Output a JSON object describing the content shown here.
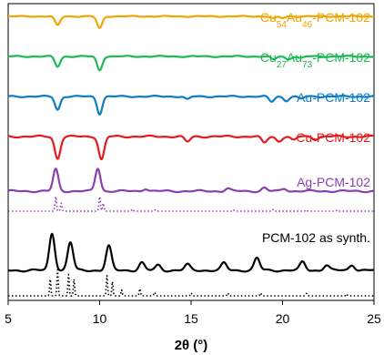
{
  "chart_data": {
    "type": "line",
    "xlabel": "2θ (°)",
    "x_ticks": [
      5,
      10,
      15,
      20,
      25
    ],
    "xlim": [
      5,
      25
    ],
    "y_axis": "stacked traces, no y scale",
    "grid": false,
    "legend": "labels placed beside each trace, right side",
    "series": [
      {
        "name": "Cu54Au46-PCM-102",
        "label_parts": [
          [
            "Cu",
            ""
          ],
          [
            "54",
            "sub"
          ],
          [
            "Au",
            ""
          ],
          [
            "46",
            "sub"
          ],
          [
            "-PCM-102",
            ""
          ]
        ],
        "color": "#F0A500",
        "style": "solid",
        "peaks": [
          [
            7.7,
            0.75
          ],
          [
            10.0,
            1.0
          ],
          [
            19.5,
            0.18
          ],
          [
            20.0,
            0.15
          ]
        ]
      },
      {
        "name": "Cu27Au73-PCM-102",
        "label_parts": [
          [
            "Cu",
            ""
          ],
          [
            "27",
            "sub"
          ],
          [
            "Au",
            ""
          ],
          [
            "73",
            "sub"
          ],
          [
            "-PCM-102",
            ""
          ]
        ],
        "color": "#1DB954",
        "style": "solid",
        "peaks": [
          [
            7.7,
            0.7
          ],
          [
            10.0,
            0.95
          ],
          [
            19.5,
            0.22
          ],
          [
            20.3,
            0.2
          ],
          [
            21.0,
            0.12
          ]
        ]
      },
      {
        "name": "Au-PCM-102",
        "label_parts": [
          [
            "Au-PCM-102",
            ""
          ]
        ],
        "color": "#0A7DC6",
        "style": "solid",
        "peaks": [
          [
            7.7,
            0.8
          ],
          [
            10.0,
            1.05
          ],
          [
            14.8,
            0.18
          ],
          [
            19.4,
            0.32
          ],
          [
            20.2,
            0.25
          ],
          [
            21.0,
            0.15
          ]
        ]
      },
      {
        "name": "Cu-PCM-102",
        "label_parts": [
          [
            "Cu-PCM-102",
            ""
          ]
        ],
        "color": "#E41A1C",
        "style": "solid",
        "peaks": [
          [
            7.7,
            1.05
          ],
          [
            10.1,
            1.1
          ],
          [
            14.8,
            0.25
          ],
          [
            19.0,
            0.3
          ],
          [
            19.8,
            0.22
          ],
          [
            20.6,
            0.18
          ],
          [
            21.8,
            0.12
          ]
        ]
      },
      {
        "name": "Ag-PCM-102",
        "label_parts": [
          [
            "Ag-PCM-102",
            ""
          ]
        ],
        "color": "#8B3FAF",
        "style": "solid",
        "peaks": [
          [
            7.6,
            1.0
          ],
          [
            9.9,
            1.05
          ],
          [
            12.5,
            0.12
          ],
          [
            17.0,
            0.12
          ],
          [
            19.0,
            0.15
          ],
          [
            20.1,
            0.12
          ]
        ]
      },
      {
        "name": "Ag-PCM-102 (simulated)",
        "label_parts": [],
        "color": "#8B3FAF",
        "style": "dotted",
        "peaks": [
          [
            7.6,
            1.0
          ],
          [
            7.9,
            0.55
          ],
          [
            10.0,
            1.0
          ],
          [
            10.2,
            0.55
          ],
          [
            11.8,
            0.15
          ],
          [
            13.0,
            0.1
          ],
          [
            17.3,
            0.1
          ],
          [
            19.5,
            0.12
          ],
          [
            21.3,
            0.1
          ],
          [
            23.0,
            0.08
          ]
        ]
      },
      {
        "name": "PCM-102 as synth.",
        "label_parts": [
          [
            "PCM-102 as synth.",
            ""
          ]
        ],
        "color": "#000000",
        "style": "solid",
        "peaks": [
          [
            7.4,
            1.45
          ],
          [
            8.4,
            1.1
          ],
          [
            10.5,
            0.95
          ],
          [
            12.3,
            0.3
          ],
          [
            13.2,
            0.2
          ],
          [
            14.8,
            0.22
          ],
          [
            16.8,
            0.28
          ],
          [
            18.6,
            0.48
          ],
          [
            21.1,
            0.32
          ],
          [
            22.4,
            0.2
          ],
          [
            23.8,
            0.22
          ]
        ]
      },
      {
        "name": "PCM-102 (simulated)",
        "label_parts": [],
        "color": "#000000",
        "style": "dotted",
        "peaks": [
          [
            7.3,
            0.7
          ],
          [
            7.7,
            1.1
          ],
          [
            8.3,
            0.9
          ],
          [
            8.6,
            0.7
          ],
          [
            10.4,
            0.85
          ],
          [
            10.7,
            0.6
          ],
          [
            11.2,
            0.25
          ],
          [
            12.2,
            0.3
          ],
          [
            13.0,
            0.15
          ],
          [
            15.0,
            0.12
          ],
          [
            17.0,
            0.12
          ],
          [
            18.8,
            0.12
          ],
          [
            21.3,
            0.1
          ],
          [
            23.5,
            0.08
          ]
        ]
      }
    ]
  }
}
